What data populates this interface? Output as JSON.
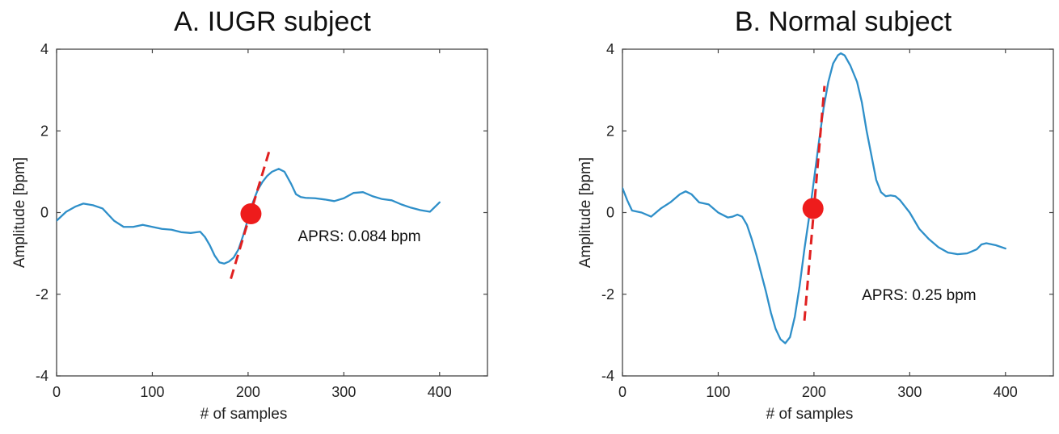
{
  "chart_data": [
    {
      "type": "line",
      "title": "A. IUGR subject",
      "xlabel": "# of samples",
      "ylabel": "Amplitude [bpm]",
      "xlim": [
        0,
        450
      ],
      "ylim": [
        -4,
        4
      ],
      "xticks": [
        0,
        100,
        200,
        300,
        400
      ],
      "yticks": [
        -4,
        -2,
        0,
        2,
        4
      ],
      "grid": false,
      "series": [
        {
          "color": "#2e8fc9",
          "x": [
            0,
            10,
            20,
            28,
            38,
            48,
            60,
            70,
            80,
            90,
            100,
            110,
            120,
            130,
            140,
            150,
            155,
            160,
            165,
            170,
            175,
            180,
            185,
            190,
            195,
            200,
            205,
            210,
            215,
            220,
            225,
            232,
            238,
            245,
            250,
            255,
            260,
            270,
            280,
            290,
            300,
            310,
            320,
            330,
            340,
            350,
            360,
            370,
            380,
            390,
            400
          ],
          "y": [
            -0.2,
            0.02,
            0.15,
            0.22,
            0.18,
            0.1,
            -0.2,
            -0.35,
            -0.35,
            -0.3,
            -0.35,
            -0.4,
            -0.42,
            -0.48,
            -0.5,
            -0.47,
            -0.6,
            -0.8,
            -1.05,
            -1.22,
            -1.25,
            -1.2,
            -1.1,
            -0.9,
            -0.55,
            -0.15,
            0.25,
            0.55,
            0.75,
            0.9,
            1.0,
            1.07,
            1.0,
            0.7,
            0.45,
            0.38,
            0.36,
            0.35,
            0.32,
            0.28,
            0.35,
            0.48,
            0.5,
            0.4,
            0.33,
            0.3,
            0.2,
            0.12,
            0.06,
            0.02,
            0.25
          ]
        }
      ],
      "tangent": {
        "color": "#e02020",
        "x1": 182,
        "y1": -1.62,
        "x2": 222,
        "y2": 1.5
      },
      "marker": {
        "color": "#ee1c1c",
        "x": 203,
        "y": -0.03
      },
      "annotation": {
        "text": "APRS: 0.084 bpm",
        "x": 252,
        "y": -0.58
      }
    },
    {
      "type": "line",
      "title": "B. Normal  subject",
      "xlabel": "# of samples",
      "ylabel": "Amplitude [bpm]",
      "xlim": [
        0,
        450
      ],
      "ylim": [
        -4,
        4
      ],
      "xticks": [
        0,
        100,
        200,
        300,
        400
      ],
      "yticks": [
        -4,
        -2,
        0,
        2,
        4
      ],
      "grid": false,
      "series": [
        {
          "color": "#2e8fc9",
          "x": [
            0,
            5,
            10,
            20,
            30,
            40,
            50,
            60,
            66,
            72,
            80,
            90,
            100,
            110,
            115,
            120,
            125,
            130,
            135,
            140,
            145,
            150,
            155,
            160,
            165,
            170,
            175,
            180,
            185,
            190,
            195,
            200,
            205,
            210,
            215,
            220,
            225,
            228,
            232,
            238,
            245,
            250,
            255,
            260,
            265,
            270,
            275,
            280,
            285,
            290,
            300,
            310,
            320,
            330,
            340,
            350,
            360,
            370,
            375,
            380,
            390,
            400
          ],
          "y": [
            0.6,
            0.3,
            0.05,
            0.0,
            -0.1,
            0.1,
            0.25,
            0.45,
            0.52,
            0.45,
            0.25,
            0.2,
            0.0,
            -0.12,
            -0.1,
            -0.05,
            -0.1,
            -0.3,
            -0.65,
            -1.05,
            -1.5,
            -1.95,
            -2.45,
            -2.85,
            -3.1,
            -3.2,
            -3.05,
            -2.55,
            -1.8,
            -0.9,
            -0.1,
            0.8,
            1.7,
            2.55,
            3.2,
            3.65,
            3.85,
            3.9,
            3.85,
            3.6,
            3.2,
            2.7,
            2.0,
            1.4,
            0.8,
            0.5,
            0.4,
            0.42,
            0.4,
            0.3,
            0.0,
            -0.4,
            -0.65,
            -0.85,
            -0.98,
            -1.02,
            -1.0,
            -0.9,
            -0.78,
            -0.75,
            -0.8,
            -0.88
          ]
        }
      ],
      "tangent": {
        "color": "#e02020",
        "x1": 190,
        "y1": -2.65,
        "x2": 211,
        "y2": 3.1
      },
      "marker": {
        "color": "#ee1c1c",
        "x": 199,
        "y": 0.1
      },
      "annotation": {
        "text": "APRS: 0.25 bpm",
        "x": 250,
        "y": -2.02
      }
    }
  ]
}
